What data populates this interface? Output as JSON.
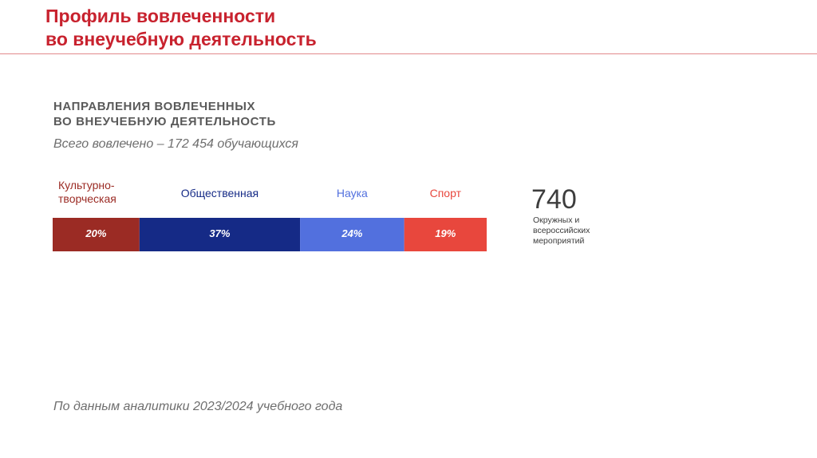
{
  "header": {
    "title_line1": "Профиль вовлеченности",
    "title_line2": "во внеучебную деятельность"
  },
  "section": {
    "heading_line1": "НАПРАВЛЕНИЯ ВОВЛЕЧЕННЫХ",
    "heading_line2": "ВО ВНЕУЧЕБНУЮ ДЕЯТЕЛЬНОСТЬ",
    "total": "Всего вовлечено – 172 454 обучающихся"
  },
  "chart_data": {
    "type": "bar",
    "orientation": "horizontal-stacked",
    "categories": [
      "Культурно-творческая",
      "Общественная",
      "Наука",
      "Спорт"
    ],
    "category_label_lines": [
      [
        "Культурно-",
        "творческая"
      ],
      [
        "Общественная"
      ],
      [
        "Наука"
      ],
      [
        "Спорт"
      ]
    ],
    "values": [
      20,
      37,
      24,
      19
    ],
    "data_labels": [
      "20%",
      "37%",
      "24%",
      "19%"
    ],
    "colors": [
      "#9b2b24",
      "#152a86",
      "#5270de",
      "#e8473d"
    ],
    "label_colors": [
      "#9b2b24",
      "#152a86",
      "#5270de",
      "#e8473d"
    ],
    "unit": "%"
  },
  "kpi": {
    "value": "740",
    "caption_lines": [
      "Окружных и",
      "всероссийских",
      "мероприятий"
    ]
  },
  "footer": {
    "source": "По данным аналитики 2023/2024 учебного года"
  }
}
